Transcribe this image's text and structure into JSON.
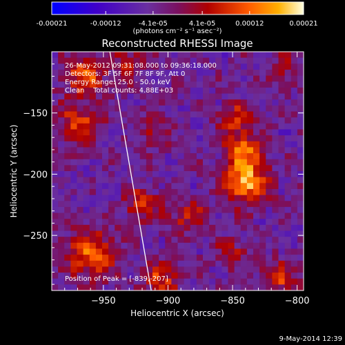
{
  "chart_data": {
    "type": "heatmap",
    "title": "Reconstructed RHESSI Image",
    "xlabel": "Heliocentric X (arcsec)",
    "ylabel": "Heliocentric Y (arcsec)",
    "xlim": [
      -990,
      -795
    ],
    "ylim": [
      -295,
      -100
    ],
    "xticks": [
      -950,
      -900,
      -850,
      -800
    ],
    "yticks": [
      -150,
      -200,
      -250
    ],
    "xtick_labels": [
      "−950",
      "−900",
      "−850",
      "−800"
    ],
    "ytick_labels": [
      "−150",
      "−200",
      "−250"
    ],
    "colorbar": {
      "min": -0.00021,
      "max": 0.00021,
      "tick_labels": [
        "-0.00021",
        "-0.00012",
        "-4.1e-05",
        "4.1e-05",
        "0.00012",
        "0.00021"
      ],
      "tick_values": [
        -0.00021,
        -0.00012,
        -4.1e-05,
        4.1e-05,
        0.00012,
        0.00021
      ],
      "unit_label": "(photons cm⁻² s⁻¹ asec⁻²)",
      "colors": [
        "#0000ff",
        "#4400cc",
        "#6a2fa0",
        "#8a0000",
        "#e03000",
        "#ff9900",
        "#ffffcc"
      ]
    },
    "annotations": [
      "26-May-2012 09:31:08.000 to 09:36:18.000",
      "Detectors: 3F 5F 6F 7F 8F 9F, Att 0",
      "Energy Range: 25.0 - 50.0 keV",
      "Clean    Total counts: 4.88E+03"
    ],
    "peak_label": "Position of Peak = [-839,-207]",
    "peak": [
      -839,
      -207
    ],
    "limb_line": {
      "points": [
        [
          -945,
          -100
        ],
        [
          -913,
          -295
        ]
      ]
    },
    "sources": [
      {
        "x": -839,
        "y": -207,
        "peak": 0.00021,
        "width": 12
      },
      {
        "x": -842,
        "y": -180,
        "peak": 0.00016,
        "width": 10
      },
      {
        "x": -848,
        "y": -155,
        "peak": 0.00012,
        "width": 9
      },
      {
        "x": -965,
        "y": -120,
        "peak": 0.00014,
        "width": 12
      },
      {
        "x": -968,
        "y": -160,
        "peak": 0.00012,
        "width": 12
      },
      {
        "x": -960,
        "y": -265,
        "peak": 0.00015,
        "width": 14
      },
      {
        "x": -920,
        "y": -225,
        "peak": 0.00011,
        "width": 10
      },
      {
        "x": -885,
        "y": -235,
        "peak": 0.0001,
        "width": 10
      },
      {
        "x": -910,
        "y": -165,
        "peak": 8e-05,
        "width": 9
      },
      {
        "x": -905,
        "y": -285,
        "peak": 0.00012,
        "width": 10
      },
      {
        "x": -815,
        "y": -285,
        "peak": 0.00012,
        "width": 10
      },
      {
        "x": -930,
        "y": -110,
        "peak": 9e-05,
        "width": 9
      },
      {
        "x": -810,
        "y": -115,
        "peak": 6e-05,
        "width": 10
      },
      {
        "x": -850,
        "y": -265,
        "peak": 8e-05,
        "width": 9
      }
    ],
    "grid": false,
    "legend": "colorbar-top"
  },
  "footer": {
    "date": "9-May-2014 12:39"
  }
}
